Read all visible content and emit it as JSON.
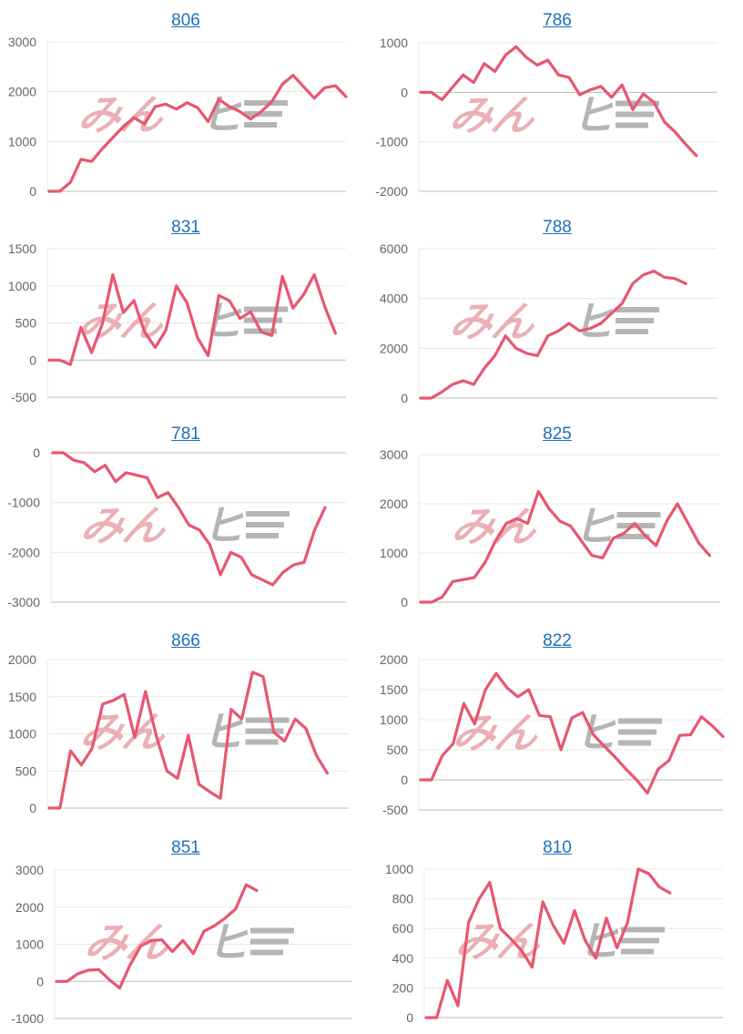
{
  "line_color": "#e8566f",
  "link_color": "#1f6fb8",
  "watermark": {
    "left": "みん",
    "right": "ヒ",
    "left_color": "#e8a3a8",
    "right_color": "#a9a9a9"
  },
  "chart_data": [
    {
      "type": "line",
      "title": "806",
      "ylim": [
        0,
        3000
      ],
      "ticks": [
        0,
        1000,
        2000,
        3000
      ],
      "values": [
        0,
        0,
        180,
        640,
        600,
        850,
        1080,
        1300,
        1480,
        1350,
        1700,
        1750,
        1650,
        1780,
        1680,
        1400,
        1850,
        1700,
        1600,
        1450,
        1600,
        1800,
        2150,
        2330,
        2100,
        1870,
        2080,
        2120,
        1900
      ]
    },
    {
      "type": "line",
      "title": "786",
      "ylim": [
        -2000,
        1000
      ],
      "ticks": [
        -2000,
        -1000,
        0,
        1000
      ],
      "values": [
        0,
        0,
        -150,
        100,
        350,
        200,
        580,
        420,
        750,
        920,
        700,
        550,
        650,
        350,
        300,
        -50,
        50,
        120,
        -100,
        150,
        -350,
        -30,
        -200,
        -600,
        -800,
        -1050,
        -1280
      ]
    },
    {
      "type": "line",
      "title": "831",
      "ylim": [
        -500,
        1500
      ],
      "ticks": [
        -500,
        0,
        500,
        1000,
        1500
      ],
      "values": [
        0,
        0,
        -60,
        440,
        100,
        480,
        1150,
        640,
        800,
        380,
        170,
        400,
        1000,
        770,
        300,
        60,
        870,
        800,
        560,
        650,
        380,
        330,
        1130,
        700,
        880,
        1150,
        720,
        360
      ]
    },
    {
      "type": "line",
      "title": "788",
      "ylim": [
        0,
        6000
      ],
      "ticks": [
        0,
        2000,
        4000,
        6000
      ],
      "values": [
        0,
        0,
        250,
        550,
        700,
        550,
        1200,
        1700,
        2500,
        2000,
        1800,
        1700,
        2500,
        2700,
        3000,
        2700,
        2800,
        3000,
        3400,
        3800,
        4600,
        4950,
        5100,
        4850,
        4800,
        4600
      ]
    },
    {
      "type": "line",
      "title": "781",
      "ylim": [
        -3000,
        0
      ],
      "ticks": [
        -3000,
        -2000,
        -1000,
        0
      ],
      "values": [
        0,
        0,
        -150,
        -200,
        -380,
        -250,
        -580,
        -400,
        -450,
        -500,
        -900,
        -800,
        -1100,
        -1450,
        -1550,
        -1850,
        -2450,
        -2000,
        -2100,
        -2450,
        -2550,
        -2650,
        -2400,
        -2250,
        -2200,
        -1550,
        -1100
      ]
    },
    {
      "type": "line",
      "title": "825",
      "ylim": [
        0,
        3000
      ],
      "ticks": [
        0,
        1000,
        2000,
        3000
      ],
      "values": [
        0,
        0,
        100,
        420,
        460,
        500,
        800,
        1250,
        1600,
        1700,
        1600,
        2250,
        1900,
        1650,
        1550,
        1250,
        950,
        900,
        1300,
        1400,
        1600,
        1350,
        1150,
        1650,
        2000,
        1600,
        1200,
        950
      ]
    },
    {
      "type": "line",
      "title": "866",
      "ylim": [
        0,
        2000
      ],
      "ticks": [
        0,
        500,
        1000,
        1500,
        2000
      ],
      "values": [
        0,
        0,
        770,
        580,
        800,
        1400,
        1450,
        1530,
        950,
        1570,
        980,
        500,
        400,
        980,
        320,
        220,
        130,
        1330,
        1200,
        1830,
        1770,
        1020,
        900,
        1200,
        1070,
        700,
        470
      ]
    },
    {
      "type": "line",
      "title": "822",
      "ylim": [
        -500,
        2000
      ],
      "ticks": [
        -500,
        0,
        500,
        1000,
        1500,
        2000
      ],
      "values": [
        0,
        0,
        400,
        600,
        1270,
        930,
        1500,
        1770,
        1530,
        1380,
        1500,
        1070,
        1050,
        500,
        1030,
        1120,
        750,
        560,
        380,
        180,
        0,
        -220,
        180,
        320,
        740,
        750,
        1050,
        900,
        720
      ]
    },
    {
      "type": "line",
      "title": "851",
      "ylim": [
        -1000,
        3000
      ],
      "ticks": [
        -1000,
        0,
        1000,
        2000,
        3000
      ],
      "values": [
        0,
        0,
        200,
        300,
        320,
        50,
        -180,
        450,
        950,
        1100,
        1120,
        800,
        1100,
        750,
        1350,
        1500,
        1700,
        1950,
        2600,
        2450
      ]
    },
    {
      "type": "line",
      "title": "810",
      "ylim": [
        0,
        1000
      ],
      "ticks": [
        0,
        200,
        400,
        600,
        800,
        1000
      ],
      "values": [
        0,
        0,
        250,
        80,
        640,
        800,
        910,
        600,
        530,
        450,
        340,
        780,
        620,
        500,
        720,
        520,
        400,
        670,
        470,
        640,
        1000,
        970,
        880,
        840
      ]
    }
  ]
}
